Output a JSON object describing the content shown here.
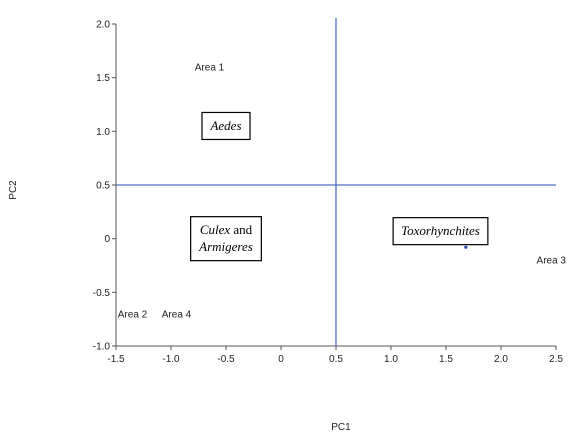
{
  "chart_data": {
    "type": "scatter",
    "xlabel": "PC1",
    "ylabel": "PC2",
    "xlim": [
      -1.5,
      2.5
    ],
    "ylim": [
      -1.0,
      2.0
    ],
    "x_ticks": [
      -1.5,
      -1.0,
      -0.5,
      0,
      0.5,
      1.0,
      1.5,
      2.0,
      2.5
    ],
    "x_tick_labels": [
      "-1.5",
      "-1.0",
      "-0.5",
      "0",
      "0.5",
      "1.0",
      "1.5",
      "2.0",
      "2.5"
    ],
    "y_ticks": [
      -1.0,
      -0.5,
      0,
      0.5,
      1.0,
      1.5,
      2.0
    ],
    "y_tick_labels": [
      "-1.0",
      "-0.5",
      "0",
      "0.5",
      "1.0",
      "1.5",
      "2.0"
    ],
    "reference_lines": {
      "x": 0.5,
      "y": 0.5,
      "color": "#4a72c4"
    },
    "points": [
      {
        "label": "Area 1",
        "x": -0.65,
        "y": 1.6
      },
      {
        "label": "Area 2",
        "x": -1.35,
        "y": -0.7
      },
      {
        "label": "Area 3",
        "x": 2.6,
        "y": -0.2
      },
      {
        "label": "Area 4",
        "x": -0.95,
        "y": -0.7
      }
    ],
    "marker": {
      "x": 1.68,
      "y": -0.08,
      "color": "#2a4fb0"
    },
    "group_boxes": [
      {
        "parts": [
          [
            "Aedes",
            true
          ]
        ],
        "x": -0.5,
        "y": 1.05
      },
      {
        "parts": [
          [
            "Culex",
            true
          ],
          [
            " and",
            false
          ]
        ],
        "parts2": [
          [
            "Armigeres",
            true
          ]
        ],
        "x": -0.5,
        "y": 0
      },
      {
        "parts": [
          [
            "Toxorhynchites",
            true
          ]
        ],
        "x": 1.45,
        "y": 0.07
      }
    ]
  }
}
